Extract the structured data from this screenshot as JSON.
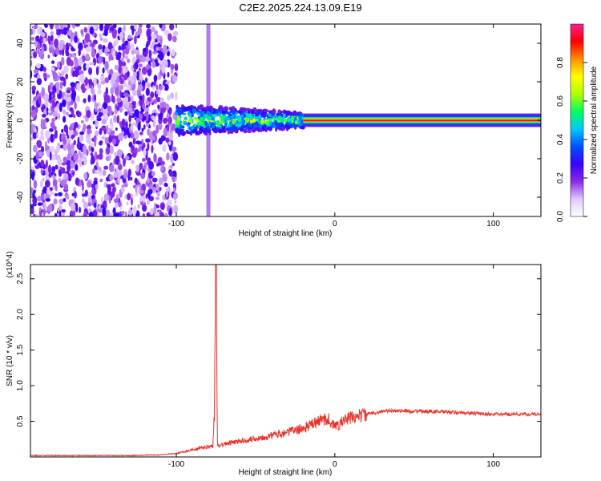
{
  "title": "C2E2.2025.224.13.09.E19",
  "chart_data": [
    {
      "type": "heatmap",
      "xlabel": "Height of straight line (km)",
      "ylabel": "Frequency (Hz)",
      "xlim": [
        -192,
        130
      ],
      "ylim": [
        -50,
        50
      ],
      "xticks": [
        -100,
        0,
        100
      ],
      "xtick_labels": [
        "-100",
        "0",
        "100"
      ],
      "yticks": [
        -40,
        -20,
        0,
        20,
        40
      ],
      "ytick_labels": [
        "-40",
        "-20",
        "0",
        "20",
        "40"
      ],
      "colorbar": {
        "label": "Normalized spectral amplitude",
        "range": [
          0,
          1
        ],
        "ticks": [
          0.0,
          0.2,
          0.4,
          0.6,
          0.8
        ],
        "tick_labels": [
          "0.0",
          "0.2",
          "0.4",
          "0.6",
          "0.8"
        ],
        "colormap": [
          "#ffffff",
          "#e0c8ff",
          "#8a2be2",
          "#3a00ff",
          "#0050ff",
          "#00c8ff",
          "#00ff60",
          "#b0ff00",
          "#ffff00",
          "#ff9000",
          "#ff0000",
          "#ff2090"
        ]
      },
      "features": [
        {
          "region": "broadband noise",
          "x_range": [
            -192,
            -100
          ],
          "y_range": [
            -50,
            50
          ],
          "level": 0.12
        },
        {
          "region": "vertical band",
          "x": -80,
          "level": 0.05
        },
        {
          "region": "signal onset",
          "x_range": [
            -100,
            -20
          ],
          "center_hz": 0,
          "half_width_hz": 8,
          "level": 0.3
        },
        {
          "region": "tonal line",
          "x_range": [
            -20,
            130
          ],
          "center_hz": 0,
          "level": 0.95
        }
      ],
      "grid": false
    },
    {
      "type": "line",
      "xlabel": "Height of straight line (km)",
      "ylabel": "SNR (10 * v/v)",
      "y_multiplier": "(x10^4)",
      "xlim": [
        -192,
        130
      ],
      "ylim": [
        0,
        2.7
      ],
      "xticks": [
        -100,
        0,
        100
      ],
      "xtick_labels": [
        "-100",
        "0",
        "100"
      ],
      "yticks": [
        0.5,
        1.0,
        1.5,
        2.0,
        2.5
      ],
      "ytick_labels": [
        "0.5",
        "1.0",
        "1.5",
        "2.0",
        "2.5"
      ],
      "color": "#e8322a",
      "x": [
        -192,
        -160,
        -130,
        -110,
        -100,
        -90,
        -84,
        -77,
        -76,
        -75,
        -74,
        -73,
        -70,
        -60,
        -50,
        -40,
        -30,
        -20,
        -15,
        -10,
        -5,
        -3,
        0,
        5,
        10,
        20,
        30,
        40,
        50,
        60,
        70,
        80,
        90,
        100,
        110,
        120,
        130
      ],
      "y": [
        0.02,
        0.02,
        0.02,
        0.03,
        0.05,
        0.1,
        0.13,
        0.15,
        0.6,
        2.7,
        0.2,
        0.16,
        0.18,
        0.22,
        0.26,
        0.3,
        0.35,
        0.4,
        0.45,
        0.5,
        0.55,
        0.5,
        0.42,
        0.5,
        0.55,
        0.6,
        0.64,
        0.65,
        0.64,
        0.64,
        0.63,
        0.62,
        0.61,
        0.6,
        0.6,
        0.6,
        0.6
      ],
      "grid": false
    }
  ]
}
